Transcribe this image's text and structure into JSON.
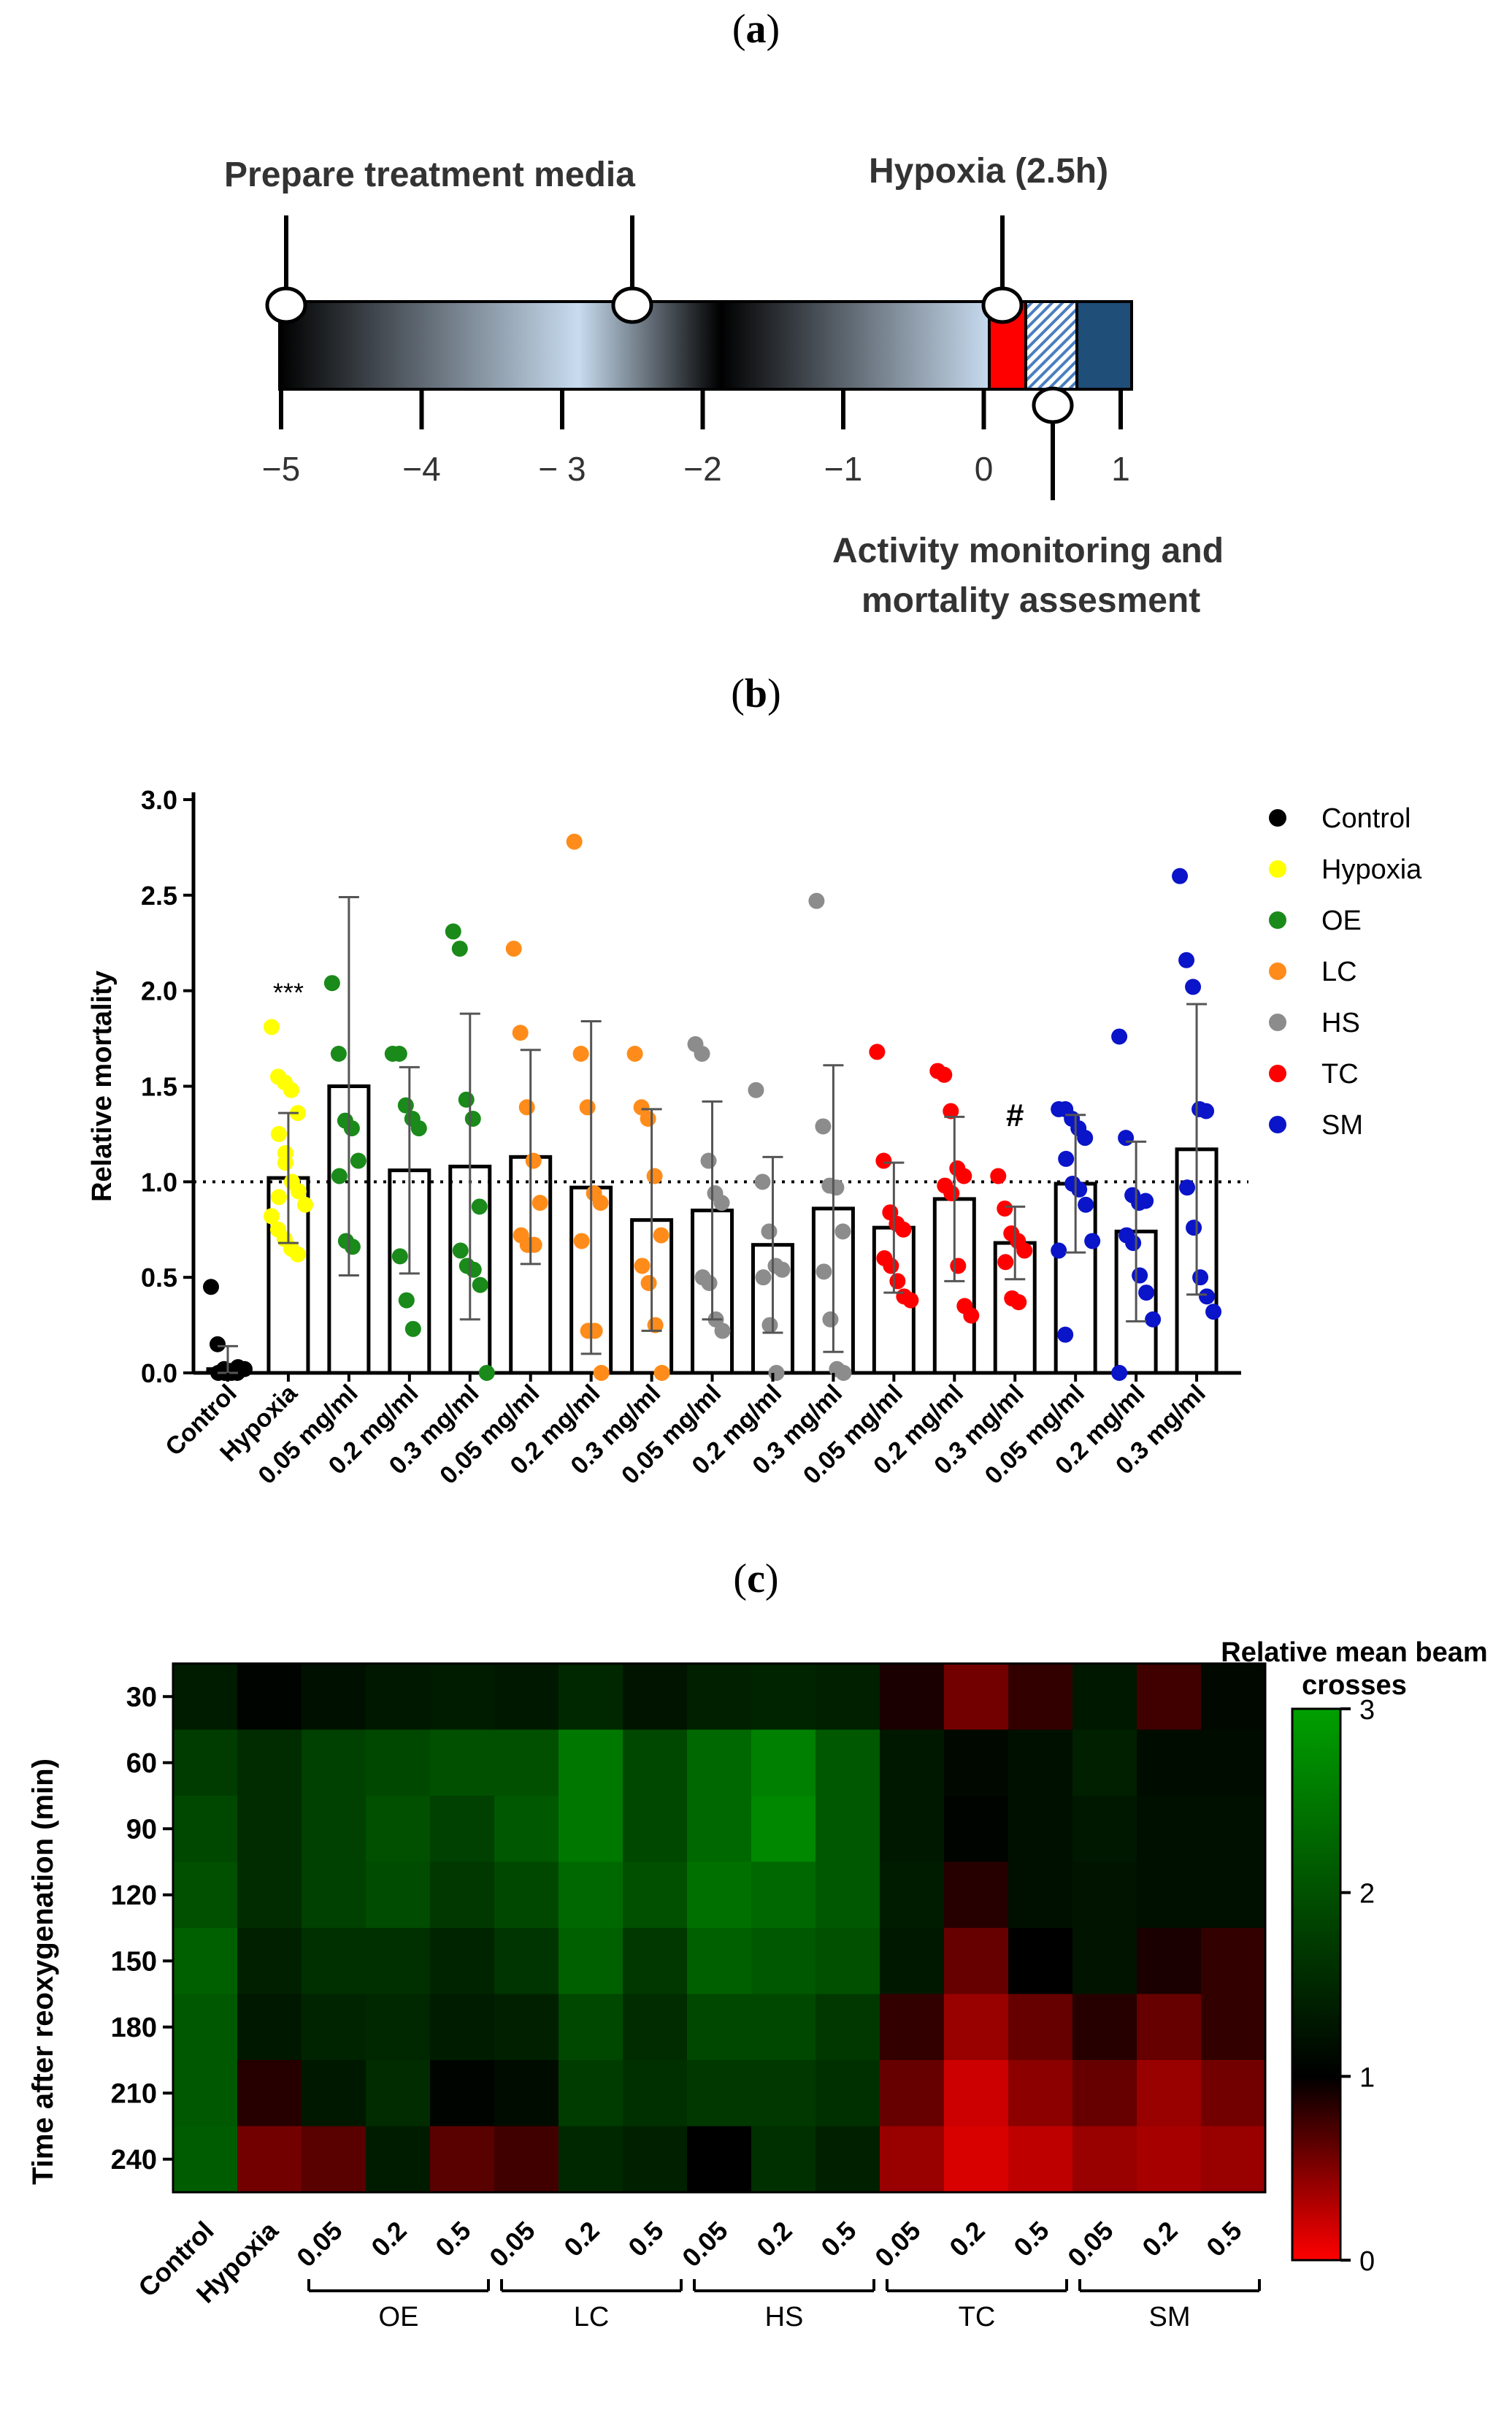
{
  "panels": {
    "a_label": "a",
    "b_label": "b",
    "c_label": "c"
  },
  "timeline": {
    "labels": {
      "prepare": "Prepare treatment media",
      "hypoxia": "Hypoxia (2.5h)",
      "activity_line1": "Activity monitoring and",
      "activity_line2": "mortality assesment"
    },
    "ticks": [
      "−5",
      "−4",
      "− 3",
      "−2",
      "−1",
      "0",
      "1"
    ],
    "tick_values": [
      -5,
      -4,
      -3,
      -2,
      -1,
      0,
      1
    ],
    "colors": {
      "hypoxia": "#ff0000",
      "hatch": "#4a7fc0",
      "final": "#1f4e79"
    }
  },
  "chart_data": [
    {
      "type": "bar",
      "panel": "b",
      "ylabel": "Relative mortality",
      "ylim": [
        0,
        3
      ],
      "yticks": [
        "0.0",
        "0.5",
        "1.0",
        "1.5",
        "2.0",
        "2.5",
        "3.0"
      ],
      "ytick_values": [
        0,
        0.5,
        1.0,
        1.5,
        2.0,
        2.5,
        3.0
      ],
      "reference_line": 1.0,
      "categories": [
        "Control",
        "Hypoxia",
        "0.05 mg/ml",
        "0.2 mg/ml",
        "0.3 mg/ml",
        "0.05 mg/ml",
        "0.2 mg/ml",
        "0.3 mg/ml",
        "0.05 mg/ml",
        "0.2 mg/ml",
        "0.3 mg/ml",
        "0.05 mg/ml",
        "0.2 mg/ml",
        "0.3 mg/ml",
        "0.05 mg/ml",
        "0.2 mg/ml",
        "0.3 mg/ml"
      ],
      "group_of": [
        "Control",
        "Hypoxia",
        "OE",
        "OE",
        "OE",
        "LC",
        "LC",
        "LC",
        "HS",
        "HS",
        "HS",
        "TC",
        "TC",
        "TC",
        "SM",
        "SM",
        "SM"
      ],
      "legend": [
        {
          "name": "Control",
          "color": "#000000"
        },
        {
          "name": "Hypoxia",
          "color": "#ffff00"
        },
        {
          "name": "OE",
          "color": "#1a8a1a"
        },
        {
          "name": "LC",
          "color": "#ff8c1a"
        },
        {
          "name": "HS",
          "color": "#8c8c8c"
        },
        {
          "name": "TC",
          "color": "#ff0000"
        },
        {
          "name": "SM",
          "color": "#0a14c8"
        }
      ],
      "means": [
        0.02,
        1.02,
        1.5,
        1.06,
        1.08,
        1.13,
        0.97,
        0.8,
        0.85,
        0.67,
        0.86,
        0.76,
        0.91,
        0.68,
        0.99,
        0.74,
        1.17
      ],
      "sd": [
        0.12,
        0.34,
        0.99,
        0.54,
        0.8,
        0.56,
        0.87,
        0.58,
        0.57,
        0.46,
        0.75,
        0.34,
        0.43,
        0.19,
        0.36,
        0.47,
        0.76
      ],
      "points": [
        [
          0.45,
          0.15,
          0.02,
          0.01,
          0.0,
          0.0,
          0.0,
          0.0,
          0.03,
          0.02
        ],
        [
          1.81,
          1.55,
          1.52,
          1.48,
          1.36,
          1.25,
          1.1,
          1.0,
          0.95,
          0.88,
          0.82,
          0.75,
          0.7,
          0.65,
          0.62,
          0.92,
          1.15
        ],
        [
          2.04,
          1.67,
          1.32,
          1.28,
          1.11,
          1.03,
          0.69,
          0.66
        ],
        [
          1.67,
          1.67,
          1.4,
          1.33,
          1.28,
          0.61,
          0.38,
          0.23
        ],
        [
          2.31,
          2.22,
          1.43,
          1.33,
          0.87,
          0.64,
          0.56,
          0.54,
          0.46,
          0.0
        ],
        [
          2.22,
          1.78,
          1.39,
          1.11,
          0.89,
          0.72,
          0.67,
          0.67
        ],
        [
          2.78,
          1.67,
          1.39,
          0.94,
          0.89,
          0.69,
          0.22,
          0.22,
          0.0
        ],
        [
          1.67,
          1.39,
          1.33,
          1.03,
          0.72,
          0.56,
          0.47,
          0.25,
          0.0
        ],
        [
          1.72,
          1.67,
          1.11,
          0.94,
          0.89,
          0.5,
          0.47,
          0.28,
          0.22
        ],
        [
          1.48,
          1.0,
          0.74,
          0.56,
          0.54,
          0.5,
          0.25,
          0.0
        ],
        [
          2.47,
          1.29,
          0.98,
          0.97,
          0.74,
          0.53,
          0.28,
          0.02,
          0.0
        ],
        [
          1.68,
          1.11,
          0.84,
          0.78,
          0.75,
          0.6,
          0.56,
          0.48,
          0.4,
          0.38
        ],
        [
          1.58,
          1.56,
          1.37,
          1.07,
          1.03,
          0.98,
          0.94,
          0.56,
          0.35,
          0.3
        ],
        [
          1.03,
          0.86,
          0.73,
          0.69,
          0.64,
          0.58,
          0.39,
          0.37
        ],
        [
          1.38,
          1.38,
          1.33,
          1.28,
          1.23,
          1.12,
          0.99,
          0.96,
          0.88,
          0.69,
          0.64,
          0.2
        ],
        [
          1.76,
          1.23,
          0.93,
          0.89,
          0.9,
          0.72,
          0.68,
          0.51,
          0.42,
          0.28,
          0.0
        ],
        [
          2.6,
          2.16,
          2.02,
          1.38,
          1.37,
          0.97,
          0.76,
          0.5,
          0.4,
          0.32
        ]
      ],
      "annotations": [
        {
          "category_index": 1,
          "text": "***",
          "y": 2.0
        },
        {
          "category_index": 13,
          "text": "#",
          "y": 1.35
        }
      ]
    },
    {
      "type": "heatmap",
      "panel": "c",
      "title": "Relative mean beam crosses",
      "title_line1": "Relative mean beam",
      "title_line2": "crosses",
      "ylabel": "Time after reoxygenation (min)",
      "rows": [
        "30",
        "60",
        "90",
        "120",
        "150",
        "180",
        "210",
        "240"
      ],
      "columns": [
        "Control",
        "Hypoxia",
        "0.05",
        "0.2",
        "0.5",
        "0.05",
        "0.2",
        "0.5",
        "0.05",
        "0.2",
        "0.5",
        "0.05",
        "0.2",
        "0.5",
        "0.05",
        "0.2",
        "0.5"
      ],
      "groups": [
        {
          "name": "OE",
          "start": 2,
          "end": 4
        },
        {
          "name": "LC",
          "start": 5,
          "end": 7
        },
        {
          "name": "HS",
          "start": 8,
          "end": 10
        },
        {
          "name": "TC",
          "start": 11,
          "end": 13
        },
        {
          "name": "SM",
          "start": 14,
          "end": 16
        }
      ],
      "color_scale": {
        "min": 0,
        "mid": 1,
        "max": 3,
        "low_color": "#ff0000",
        "mid_color": "#000000",
        "high_color": "#00a000"
      },
      "colorbar_ticks": [
        "0",
        "1",
        "2",
        "3"
      ],
      "colorbar_tick_values": [
        0,
        1,
        2,
        3
      ],
      "values": [
        [
          1.35,
          1.05,
          1.2,
          1.3,
          1.35,
          1.3,
          1.5,
          1.25,
          1.4,
          1.45,
          1.4,
          0.9,
          0.55,
          0.8,
          1.3,
          0.75,
          1.1
        ],
        [
          1.75,
          1.55,
          1.8,
          1.9,
          2.0,
          2.0,
          2.5,
          1.9,
          2.3,
          2.6,
          2.1,
          1.3,
          1.1,
          1.2,
          1.4,
          1.15,
          1.15
        ],
        [
          1.9,
          1.55,
          1.8,
          2.0,
          1.8,
          2.1,
          2.5,
          1.9,
          2.3,
          2.7,
          2.1,
          1.3,
          1.05,
          1.2,
          1.3,
          1.2,
          1.2
        ],
        [
          2.0,
          1.55,
          1.8,
          1.95,
          1.7,
          1.9,
          2.3,
          2.0,
          2.4,
          2.3,
          2.1,
          1.35,
          0.85,
          1.2,
          1.25,
          1.2,
          1.2
        ],
        [
          2.2,
          1.4,
          1.6,
          1.6,
          1.45,
          1.65,
          2.2,
          1.7,
          2.2,
          2.1,
          2.0,
          1.3,
          0.6,
          1.0,
          1.25,
          0.9,
          0.8
        ],
        [
          2.1,
          1.3,
          1.45,
          1.5,
          1.35,
          1.4,
          1.9,
          1.55,
          1.9,
          1.9,
          1.7,
          0.8,
          0.4,
          0.6,
          0.85,
          0.6,
          0.8
        ],
        [
          2.1,
          0.85,
          1.3,
          1.55,
          1.05,
          1.15,
          1.75,
          1.6,
          1.7,
          1.7,
          1.6,
          0.6,
          0.2,
          0.45,
          0.6,
          0.4,
          0.55
        ],
        [
          2.15,
          0.55,
          0.65,
          1.35,
          0.65,
          0.75,
          1.5,
          1.4,
          1.0,
          1.6,
          1.4,
          0.4,
          0.15,
          0.25,
          0.4,
          0.35,
          0.4
        ]
      ]
    }
  ]
}
